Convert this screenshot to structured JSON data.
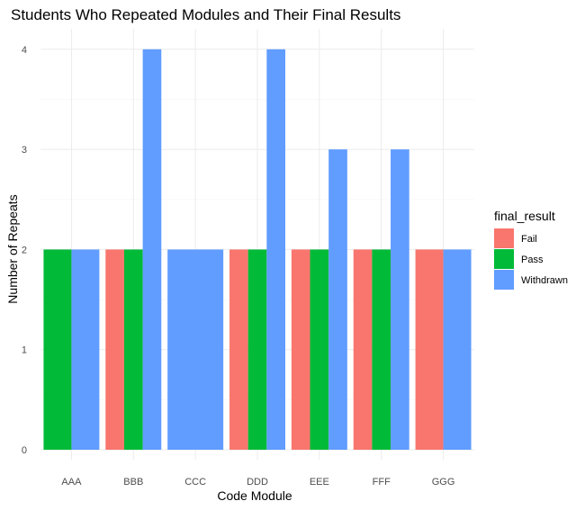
{
  "chart_data": {
    "type": "bar",
    "layout": "dodge",
    "title": "Students Who Repeated Modules and Their Final Results",
    "xlabel": "Code Module",
    "ylabel": "Number of Repeats",
    "categories": [
      "AAA",
      "BBB",
      "CCC",
      "DDD",
      "EEE",
      "FFF",
      "GGG"
    ],
    "ylim": [
      0,
      4.2
    ],
    "yticks": [
      0,
      1,
      2,
      3,
      4
    ],
    "grid": true,
    "legend": {
      "title": "final_result",
      "position": "right"
    },
    "series": [
      {
        "name": "Fail",
        "color": "#F8766D",
        "values": [
          null,
          2,
          null,
          2,
          2,
          2,
          2
        ]
      },
      {
        "name": "Pass",
        "color": "#00BA38",
        "values": [
          2,
          2,
          null,
          2,
          2,
          2,
          null
        ]
      },
      {
        "name": "Withdrawn",
        "color": "#619CFF",
        "values": [
          2,
          4,
          2,
          4,
          3,
          3,
          2
        ]
      }
    ]
  }
}
